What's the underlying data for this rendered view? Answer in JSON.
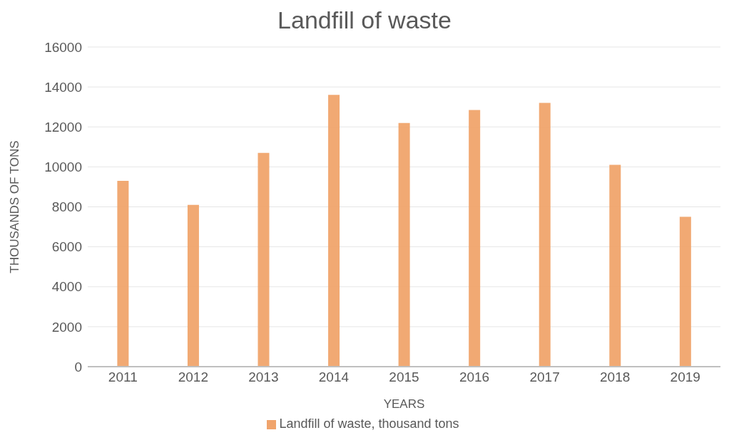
{
  "chart_data": {
    "type": "bar",
    "title": "Landfill of waste",
    "xlabel": "YEARS",
    "ylabel": "THOUSANDS OF TONS",
    "categories": [
      "2011",
      "2012",
      "2013",
      "2014",
      "2015",
      "2016",
      "2017",
      "2018",
      "2019"
    ],
    "series": [
      {
        "name": "Landfill of waste, thousand tons",
        "color": "#f0a46c",
        "values": [
          9300,
          8100,
          10700,
          13600,
          12200,
          12850,
          13200,
          10100,
          7500
        ]
      }
    ],
    "ylim": [
      0,
      16000
    ],
    "yticks": [
      0,
      2000,
      4000,
      6000,
      8000,
      10000,
      12000,
      14000,
      16000
    ],
    "grid": "y",
    "legend": "bottom"
  }
}
